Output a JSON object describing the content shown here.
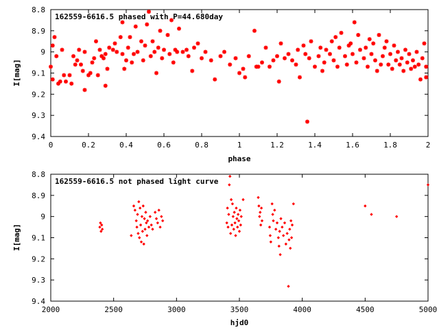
{
  "chart_data": [
    {
      "type": "scatter",
      "title": "162559-6616.5 phased with P=44.680day",
      "xlabel": "phase",
      "ylabel": "I[mag]",
      "xlim": [
        0,
        2
      ],
      "ylim": [
        9.4,
        8.8
      ],
      "y_inverted": true,
      "grid": false,
      "x_ticks": [
        "0",
        "0.2",
        "0.4",
        "0.6",
        "0.8",
        "1",
        "1.2",
        "1.4",
        "1.6",
        "1.8",
        "2"
      ],
      "y_ticks": [
        "8.8",
        "8.9",
        "9",
        "9.1",
        "9.2",
        "9.3",
        "9.4"
      ],
      "marker_color": "#ff0000",
      "points": [
        [
          0.0,
          9.07
        ],
        [
          0.01,
          8.97
        ],
        [
          0.01,
          9.13
        ],
        [
          0.02,
          8.93
        ],
        [
          0.03,
          9.02
        ],
        [
          0.04,
          9.15
        ],
        [
          0.05,
          9.14
        ],
        [
          0.06,
          8.99
        ],
        [
          0.07,
          9.11
        ],
        [
          0.08,
          9.14
        ],
        [
          0.1,
          9.11
        ],
        [
          0.11,
          9.15
        ],
        [
          0.12,
          9.02
        ],
        [
          0.13,
          9.06
        ],
        [
          0.14,
          9.04
        ],
        [
          0.15,
          8.99
        ],
        [
          0.16,
          9.06
        ],
        [
          0.17,
          9.09
        ],
        [
          0.18,
          9.0
        ],
        [
          0.18,
          9.18
        ],
        [
          0.2,
          9.11
        ],
        [
          0.21,
          9.1
        ],
        [
          0.22,
          9.05
        ],
        [
          0.23,
          9.03
        ],
        [
          0.24,
          8.95
        ],
        [
          0.25,
          9.11
        ],
        [
          0.26,
          8.99
        ],
        [
          0.27,
          9.02
        ],
        [
          0.28,
          9.03
        ],
        [
          0.29,
          9.16
        ],
        [
          0.29,
          9.01
        ],
        [
          0.3,
          9.08
        ],
        [
          0.31,
          8.98
        ],
        [
          0.33,
          8.99
        ],
        [
          0.34,
          8.96
        ],
        [
          0.35,
          9.0
        ],
        [
          0.37,
          8.93
        ],
        [
          0.38,
          9.01
        ],
        [
          0.38,
          8.86
        ],
        [
          0.39,
          9.08
        ],
        [
          0.4,
          9.04
        ],
        [
          0.41,
          8.98
        ],
        [
          0.42,
          8.93
        ],
        [
          0.43,
          9.05
        ],
        [
          0.44,
          9.01
        ],
        [
          0.45,
          8.88
        ],
        [
          0.46,
          9.0
        ],
        [
          0.48,
          8.95
        ],
        [
          0.49,
          9.04
        ],
        [
          0.5,
          8.97
        ],
        [
          0.51,
          8.87
        ],
        [
          0.52,
          8.81
        ],
        [
          0.53,
          9.02
        ],
        [
          0.54,
          8.95
        ],
        [
          0.55,
          9.0
        ],
        [
          0.56,
          9.1
        ],
        [
          0.57,
          8.98
        ],
        [
          0.58,
          8.9
        ],
        [
          0.59,
          9.03
        ],
        [
          0.6,
          8.99
        ],
        [
          0.62,
          8.92
        ],
        [
          0.63,
          9.01
        ],
        [
          0.64,
          8.85
        ],
        [
          0.65,
          9.05
        ],
        [
          0.66,
          8.99
        ],
        [
          0.67,
          9.0
        ],
        [
          0.68,
          8.89
        ],
        [
          0.7,
          9.0
        ],
        [
          0.72,
          8.99
        ],
        [
          0.73,
          9.02
        ],
        [
          0.75,
          9.09
        ],
        [
          0.76,
          8.98
        ],
        [
          0.78,
          8.96
        ],
        [
          0.8,
          9.03
        ],
        [
          0.82,
          9.0
        ],
        [
          0.85,
          9.04
        ],
        [
          0.87,
          9.13
        ],
        [
          0.9,
          9.02
        ],
        [
          0.92,
          9.0
        ],
        [
          0.95,
          9.06
        ],
        [
          0.98,
          9.03
        ],
        [
          1.0,
          9.1
        ],
        [
          1.02,
          9.08
        ],
        [
          1.03,
          9.12
        ],
        [
          1.05,
          9.02
        ],
        [
          1.08,
          8.9
        ],
        [
          1.09,
          9.07
        ],
        [
          1.1,
          9.07
        ],
        [
          1.12,
          9.05
        ],
        [
          1.14,
          8.98
        ],
        [
          1.16,
          9.07
        ],
        [
          1.18,
          9.04
        ],
        [
          1.2,
          9.02
        ],
        [
          1.21,
          9.14
        ],
        [
          1.22,
          8.96
        ],
        [
          1.24,
          9.03
        ],
        [
          1.26,
          9.01
        ],
        [
          1.28,
          9.04
        ],
        [
          1.3,
          9.06
        ],
        [
          1.31,
          8.99
        ],
        [
          1.32,
          9.12
        ],
        [
          1.34,
          8.97
        ],
        [
          1.35,
          9.01
        ],
        [
          1.36,
          9.33
        ],
        [
          1.37,
          9.03
        ],
        [
          1.38,
          8.95
        ],
        [
          1.4,
          9.07
        ],
        [
          1.42,
          9.02
        ],
        [
          1.43,
          8.98
        ],
        [
          1.44,
          9.09
        ],
        [
          1.45,
          9.05
        ],
        [
          1.46,
          8.99
        ],
        [
          1.48,
          9.01
        ],
        [
          1.49,
          8.95
        ],
        [
          1.5,
          9.04
        ],
        [
          1.51,
          8.93
        ],
        [
          1.52,
          9.07
        ],
        [
          1.53,
          8.98
        ],
        [
          1.54,
          8.91
        ],
        [
          1.56,
          9.02
        ],
        [
          1.57,
          9.06
        ],
        [
          1.58,
          8.97
        ],
        [
          1.59,
          8.96
        ],
        [
          1.6,
          9.01
        ],
        [
          1.61,
          8.86
        ],
        [
          1.62,
          9.05
        ],
        [
          1.63,
          8.92
        ],
        [
          1.64,
          8.99
        ],
        [
          1.66,
          9.03
        ],
        [
          1.67,
          8.98
        ],
        [
          1.68,
          9.07
        ],
        [
          1.69,
          8.94
        ],
        [
          1.7,
          9.01
        ],
        [
          1.71,
          8.96
        ],
        [
          1.72,
          9.04
        ],
        [
          1.73,
          9.09
        ],
        [
          1.74,
          8.92
        ],
        [
          1.75,
          9.06
        ],
        [
          1.76,
          9.02
        ],
        [
          1.77,
          8.98
        ],
        [
          1.78,
          8.95
        ],
        [
          1.79,
          9.06
        ],
        [
          1.8,
          9.01
        ],
        [
          1.81,
          9.08
        ],
        [
          1.82,
          8.97
        ],
        [
          1.83,
          9.04
        ],
        [
          1.84,
          9.0
        ],
        [
          1.85,
          9.06
        ],
        [
          1.86,
          9.03
        ],
        [
          1.87,
          9.09
        ],
        [
          1.88,
          8.99
        ],
        [
          1.89,
          9.05
        ],
        [
          1.9,
          9.01
        ],
        [
          1.91,
          9.08
        ],
        [
          1.92,
          9.04
        ],
        [
          1.93,
          9.07
        ],
        [
          1.94,
          9.0
        ],
        [
          1.95,
          9.06
        ],
        [
          1.96,
          9.13
        ],
        [
          1.97,
          9.03
        ],
        [
          1.98,
          8.96
        ],
        [
          1.99,
          9.07
        ],
        [
          1.99,
          9.12
        ]
      ]
    },
    {
      "type": "scatter",
      "title": "162559-6616.5 not phased light curve",
      "xlabel": "hjd0",
      "ylabel": "I[mag]",
      "xlim": [
        2000,
        5000
      ],
      "ylim": [
        9.4,
        8.8
      ],
      "y_inverted": true,
      "grid": false,
      "x_ticks": [
        "2000",
        "2500",
        "3000",
        "3500",
        "4000",
        "4500",
        "5000"
      ],
      "y_ticks": [
        "8.8",
        "8.9",
        "9",
        "9.1",
        "9.2",
        "9.3",
        "9.4"
      ],
      "marker_color": "#ff0000",
      "points": [
        [
          2390,
          9.05
        ],
        [
          2395,
          9.03
        ],
        [
          2400,
          9.07
        ],
        [
          2405,
          9.04
        ],
        [
          2410,
          9.06
        ],
        [
          2640,
          9.09
        ],
        [
          2660,
          8.95
        ],
        [
          2670,
          8.97
        ],
        [
          2680,
          9.02
        ],
        [
          2685,
          9.05
        ],
        [
          2690,
          8.99
        ],
        [
          2695,
          9.08
        ],
        [
          2700,
          8.93
        ],
        [
          2705,
          9.1
        ],
        [
          2710,
          8.96
        ],
        [
          2715,
          9.04
        ],
        [
          2720,
          9.12
        ],
        [
          2725,
          9.0
        ],
        [
          2730,
          9.07
        ],
        [
          2735,
          8.95
        ],
        [
          2740,
          9.13
        ],
        [
          2745,
          9.01
        ],
        [
          2750,
          9.06
        ],
        [
          2755,
          8.98
        ],
        [
          2760,
          9.03
        ],
        [
          2765,
          9.09
        ],
        [
          2770,
          9.02
        ],
        [
          2780,
          9.05
        ],
        [
          2790,
          9.0
        ],
        [
          2800,
          9.04
        ],
        [
          2810,
          9.06
        ],
        [
          2830,
          8.98
        ],
        [
          2840,
          9.01
        ],
        [
          2850,
          9.03
        ],
        [
          2860,
          8.97
        ],
        [
          2870,
          9.05
        ],
        [
          2880,
          9.0
        ],
        [
          2890,
          9.02
        ],
        [
          3400,
          9.03
        ],
        [
          3405,
          8.96
        ],
        [
          3410,
          9.05
        ],
        [
          3415,
          8.99
        ],
        [
          3420,
          8.85
        ],
        [
          3425,
          8.81
        ],
        [
          3430,
          9.08
        ],
        [
          3435,
          8.92
        ],
        [
          3440,
          9.04
        ],
        [
          3445,
          8.94
        ],
        [
          3450,
          9.0
        ],
        [
          3455,
          9.06
        ],
        [
          3460,
          8.98
        ],
        [
          3465,
          9.03
        ],
        [
          3470,
          9.09
        ],
        [
          3475,
          8.96
        ],
        [
          3480,
          9.01
        ],
        [
          3485,
          9.05
        ],
        [
          3490,
          8.99
        ],
        [
          3495,
          9.02
        ],
        [
          3500,
          9.07
        ],
        [
          3505,
          8.97
        ],
        [
          3510,
          9.04
        ],
        [
          3515,
          9.0
        ],
        [
          3530,
          8.92
        ],
        [
          3650,
          8.91
        ],
        [
          3655,
          8.95
        ],
        [
          3660,
          9.0
        ],
        [
          3665,
          8.98
        ],
        [
          3670,
          9.04
        ],
        [
          3675,
          8.96
        ],
        [
          3680,
          9.02
        ],
        [
          3740,
          9.05
        ],
        [
          3745,
          9.09
        ],
        [
          3750,
          9.12
        ],
        [
          3760,
          8.94
        ],
        [
          3765,
          8.99
        ],
        [
          3770,
          9.02
        ],
        [
          3780,
          8.97
        ],
        [
          3790,
          9.06
        ],
        [
          3800,
          9.03
        ],
        [
          3810,
          9.1
        ],
        [
          3815,
          9.14
        ],
        [
          3820,
          9.07
        ],
        [
          3825,
          9.18
        ],
        [
          3830,
          9.01
        ],
        [
          3840,
          9.05
        ],
        [
          3850,
          9.09
        ],
        [
          3860,
          9.03
        ],
        [
          3870,
          9.13
        ],
        [
          3880,
          9.08
        ],
        [
          3890,
          9.33
        ],
        [
          3895,
          9.11
        ],
        [
          3900,
          9.06
        ],
        [
          3905,
          9.15
        ],
        [
          3910,
          9.02
        ],
        [
          3915,
          9.1
        ],
        [
          3920,
          9.04
        ],
        [
          3930,
          8.94
        ],
        [
          4500,
          8.95
        ],
        [
          4550,
          8.99
        ],
        [
          4750,
          9.0
        ],
        [
          5000,
          8.85
        ]
      ]
    }
  ]
}
